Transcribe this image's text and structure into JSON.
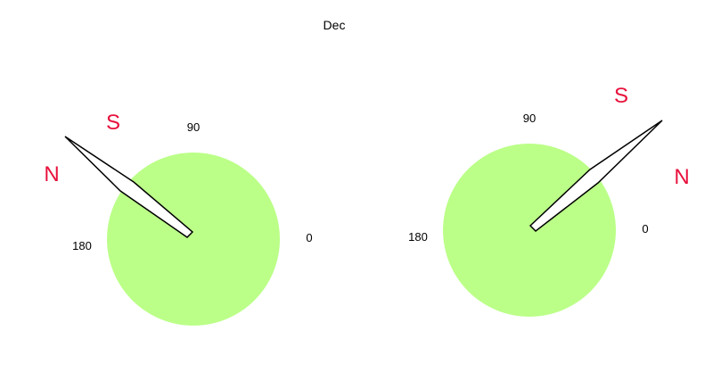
{
  "title": "Dec",
  "colors": {
    "dial_fill": "#bbff88",
    "pole_label": "#e8103c",
    "needle_stroke": "#000000",
    "needle_fill": "#ffffff"
  },
  "dials": [
    {
      "angle_labels": {
        "deg0": "0",
        "deg90": "90",
        "deg180": "180"
      },
      "pole_labels": {
        "south": "S",
        "north": "N"
      }
    },
    {
      "angle_labels": {
        "deg0": "0",
        "deg90": "90",
        "deg180": "180"
      },
      "pole_labels": {
        "south": "S",
        "north": "N"
      }
    }
  ]
}
